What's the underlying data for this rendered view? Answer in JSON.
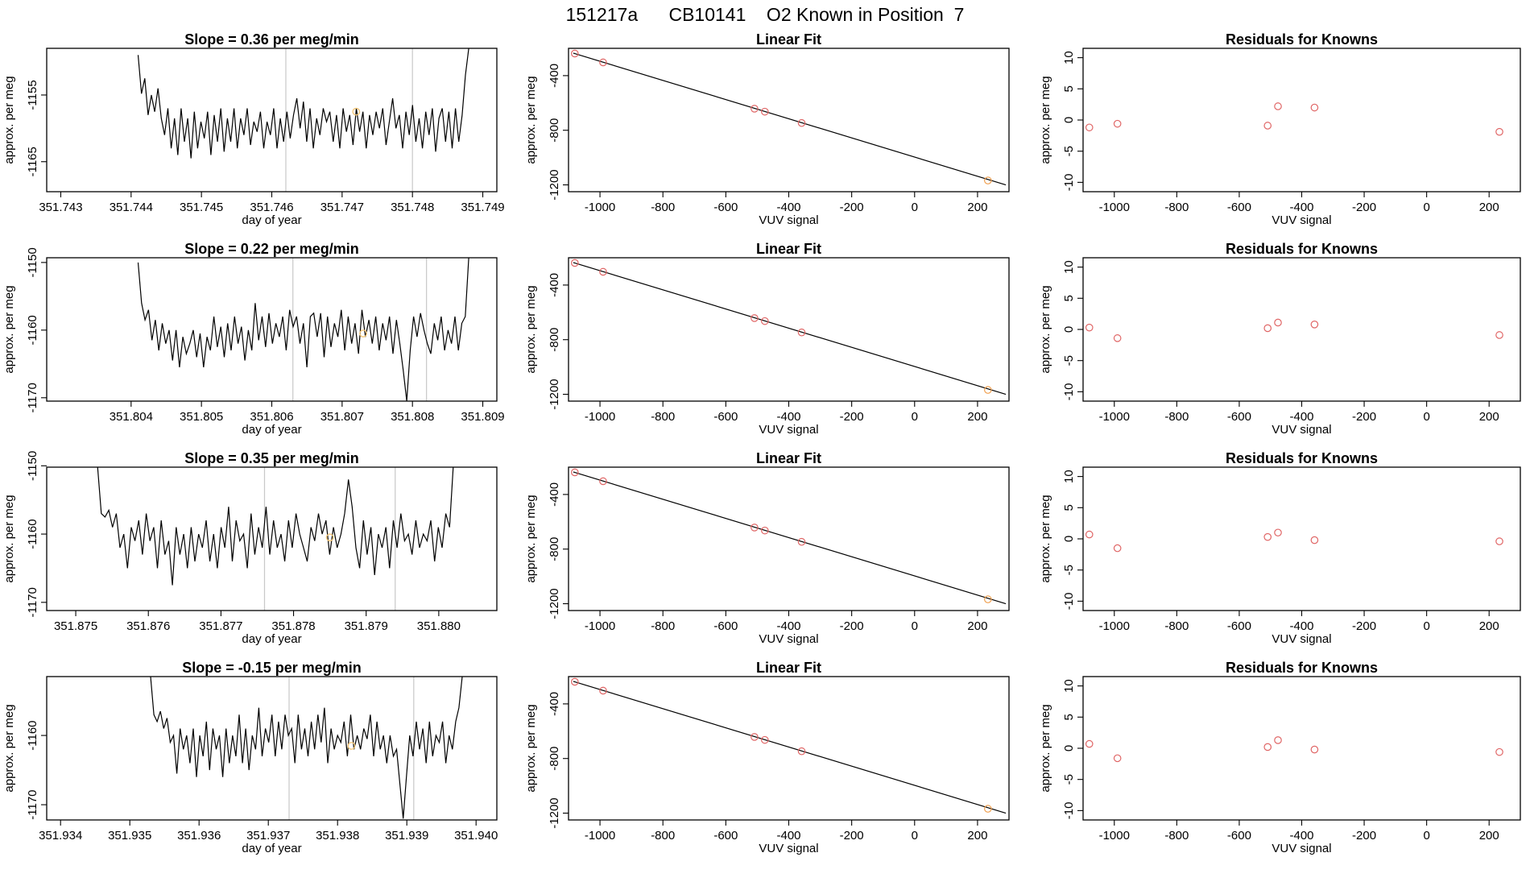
{
  "figure": {
    "title": "151217a      CB10141    O2 Known in Position  7"
  },
  "chart_data": [
    {
      "type": "line",
      "title": "Slope =  0.36  per meg/min",
      "xlabel": "day of year",
      "ylabel": "approx. per meg",
      "xlim": [
        351.7428,
        351.7492
      ],
      "ylim": [
        -1169.5,
        -1148
      ],
      "xticks": [
        "351.743",
        "351.744",
        "351.745",
        "351.746",
        "351.747",
        "351.748",
        "351.749"
      ],
      "yticks": [
        "-1155",
        "-1165"
      ],
      "vlines": [
        351.7462,
        351.748
      ],
      "highlight": {
        "x": 351.7472,
        "y": -1157.5,
        "color": "#f5c87a"
      },
      "line_color": "#000000",
      "x_start": 351.7441,
      "x_end": 351.7488,
      "values": [
        -1149,
        -1154.8,
        -1152.5,
        -1158,
        -1155,
        -1157.5,
        -1154,
        -1158.5,
        -1161,
        -1157,
        -1163,
        -1158.5,
        -1164,
        -1157,
        -1162,
        -1158.5,
        -1164.5,
        -1157.5,
        -1163,
        -1159,
        -1161.5,
        -1157.5,
        -1164,
        -1158,
        -1162,
        -1157,
        -1163.5,
        -1158.5,
        -1162,
        -1157,
        -1163,
        -1158.5,
        -1161,
        -1157,
        -1162.5,
        -1159,
        -1160.5,
        -1157.5,
        -1163,
        -1159,
        -1161,
        -1157,
        -1163,
        -1158.5,
        -1162,
        -1157.5,
        -1161.5,
        -1158,
        -1155.5,
        -1160,
        -1156,
        -1162,
        -1157,
        -1163,
        -1158.5,
        -1161,
        -1157,
        -1159,
        -1157.5,
        -1162,
        -1158,
        -1163,
        -1157,
        -1160.5,
        -1158,
        -1162.5,
        -1157,
        -1160.5,
        -1157.5,
        -1163,
        -1158,
        -1161,
        -1157.5,
        -1160,
        -1157,
        -1162.5,
        -1159,
        -1155.5,
        -1160,
        -1158,
        -1163,
        -1157.5,
        -1161,
        -1156.5,
        -1162,
        -1158.5,
        -1163,
        -1157.5,
        -1161,
        -1157,
        -1163.5,
        -1158.5,
        -1157,
        -1162,
        -1157.5,
        -1163,
        -1157,
        -1162,
        -1158,
        -1152,
        -1148
      ]
    },
    {
      "type": "scatter",
      "title": "Linear Fit",
      "xlabel": "VUV signal",
      "ylabel": "approx. per meg",
      "xlim": [
        -1100,
        300
      ],
      "ylim": [
        -1250,
        -200
      ],
      "xticks": [
        -1000,
        -800,
        -600,
        -400,
        -200,
        0,
        200
      ],
      "yticks": [
        -400,
        -800,
        -1200
      ],
      "fit_line": {
        "x1": -1085,
        "y1": -235,
        "x2": 290,
        "y2": -1200,
        "color": "#000000"
      },
      "points": [
        {
          "x": -1080,
          "y": -238,
          "color": "#e06666"
        },
        {
          "x": -990,
          "y": -303,
          "color": "#e06666"
        },
        {
          "x": -509,
          "y": -642,
          "color": "#e06666"
        },
        {
          "x": -476,
          "y": -664,
          "color": "#e06666"
        },
        {
          "x": -359,
          "y": -747,
          "color": "#e06666"
        },
        {
          "x": 233,
          "y": -1168,
          "color": "#f0a050"
        }
      ]
    },
    {
      "type": "scatter",
      "title": "Residuals for Knowns",
      "xlabel": "VUV signal",
      "ylabel": "approx. per meg",
      "xlim": [
        -1100,
        300
      ],
      "ylim": [
        -11.5,
        11.5
      ],
      "xticks": [
        -1000,
        -800,
        -600,
        -400,
        -200,
        0,
        200
      ],
      "yticks": [
        10,
        5,
        0,
        -5,
        -10
      ],
      "points": [
        {
          "x": -1080,
          "y": -1.2,
          "color": "#e06666"
        },
        {
          "x": -990,
          "y": -0.6,
          "color": "#e06666"
        },
        {
          "x": -509,
          "y": -0.9,
          "color": "#e06666"
        },
        {
          "x": -476,
          "y": 2.2,
          "color": "#e06666"
        },
        {
          "x": -359,
          "y": 2.0,
          "color": "#e06666"
        },
        {
          "x": 233,
          "y": -1.9,
          "color": "#e06666"
        }
      ]
    },
    {
      "type": "line",
      "title": "Slope =  0.22  per meg/min",
      "xlabel": "day of year",
      "ylabel": "approx. per meg",
      "xlim": [
        351.8028,
        351.8092
      ],
      "ylim": [
        -1170.5,
        -1149.3
      ],
      "xticks": [
        "351.804",
        "351.805",
        "351.806",
        "351.807",
        "351.808",
        "351.809"
      ],
      "yticks": [
        "-1150",
        "-1160",
        "-1170"
      ],
      "vlines": [
        351.8063,
        351.8082
      ],
      "highlight": {
        "x": 351.8073,
        "y": -1160.5,
        "color": "#f5c87a"
      },
      "line_color": "#000000",
      "x_start": 351.8041,
      "x_end": 351.8088,
      "values": [
        -1150,
        -1156,
        -1158.5,
        -1157,
        -1161.5,
        -1158.5,
        -1163,
        -1159,
        -1162,
        -1160,
        -1164.5,
        -1160,
        -1165.5,
        -1161,
        -1163.5,
        -1162,
        -1160,
        -1164,
        -1160.5,
        -1165.5,
        -1161,
        -1163,
        -1158,
        -1162.5,
        -1159.5,
        -1164,
        -1159,
        -1163,
        -1158,
        -1162,
        -1159.5,
        -1164.5,
        -1160,
        -1163,
        -1156,
        -1161.5,
        -1158,
        -1162.5,
        -1157.5,
        -1162,
        -1159,
        -1161,
        -1158,
        -1163,
        -1157,
        -1159.5,
        -1158,
        -1162,
        -1159,
        -1165.5,
        -1158,
        -1157.5,
        -1161,
        -1157.5,
        -1164,
        -1158,
        -1162.5,
        -1159,
        -1161,
        -1157,
        -1163,
        -1158,
        -1162,
        -1159,
        -1163.5,
        -1157,
        -1161,
        -1158.5,
        -1162,
        -1158,
        -1163,
        -1159,
        -1161.5,
        -1158,
        -1163.5,
        -1158.5,
        -1162,
        -1166,
        -1170.5,
        -1163,
        -1158,
        -1161,
        -1157.5,
        -1160,
        -1162,
        -1163.5,
        -1159,
        -1161.5,
        -1158,
        -1163,
        -1160,
        -1162,
        -1158,
        -1163,
        -1159,
        -1158,
        -1149.3
      ]
    },
    {
      "type": "scatter",
      "title": "Linear Fit",
      "xlabel": "VUV signal",
      "ylabel": "approx. per meg",
      "xlim": [
        -1100,
        300
      ],
      "ylim": [
        -1250,
        -200
      ],
      "xticks": [
        -1000,
        -800,
        -600,
        -400,
        -200,
        0,
        200
      ],
      "yticks": [
        -400,
        -800,
        -1200
      ],
      "fit_line": {
        "x1": -1085,
        "y1": -235,
        "x2": 290,
        "y2": -1200,
        "color": "#000000"
      },
      "points": [
        {
          "x": -1080,
          "y": -238,
          "color": "#e06666"
        },
        {
          "x": -990,
          "y": -303,
          "color": "#e06666"
        },
        {
          "x": -509,
          "y": -642,
          "color": "#e06666"
        },
        {
          "x": -476,
          "y": -664,
          "color": "#e06666"
        },
        {
          "x": -359,
          "y": -747,
          "color": "#e06666"
        },
        {
          "x": 233,
          "y": -1168,
          "color": "#f0a050"
        }
      ]
    },
    {
      "type": "scatter",
      "title": "Residuals for Knowns",
      "xlabel": "VUV signal",
      "ylabel": "approx. per meg",
      "xlim": [
        -1100,
        300
      ],
      "ylim": [
        -11.5,
        11.5
      ],
      "xticks": [
        -1000,
        -800,
        -600,
        -400,
        -200,
        0,
        200
      ],
      "yticks": [
        10,
        5,
        0,
        -5,
        -10
      ],
      "points": [
        {
          "x": -1080,
          "y": 0.3,
          "color": "#e06666"
        },
        {
          "x": -990,
          "y": -1.4,
          "color": "#e06666"
        },
        {
          "x": -509,
          "y": 0.2,
          "color": "#e06666"
        },
        {
          "x": -476,
          "y": 1.1,
          "color": "#e06666"
        },
        {
          "x": -359,
          "y": 0.8,
          "color": "#e06666"
        },
        {
          "x": 233,
          "y": -0.9,
          "color": "#e06666"
        }
      ]
    },
    {
      "type": "line",
      "title": "Slope =  0.35  per meg/min",
      "xlabel": "day of year",
      "ylabel": "approx. per meg",
      "xlim": [
        351.8746,
        351.8808
      ],
      "ylim": [
        -1171.2,
        -1150.2
      ],
      "xticks": [
        "351.875",
        "351.876",
        "351.877",
        "351.878",
        "351.879",
        "351.880"
      ],
      "yticks": [
        "-1150",
        "-1160",
        "-1170"
      ],
      "vlines": [
        351.8776,
        351.8794
      ],
      "highlight": {
        "x": 351.8785,
        "y": -1160.5,
        "color": "#f5c87a"
      },
      "line_color": "#000000",
      "x_start": 351.8753,
      "x_end": 351.8802,
      "values": [
        -1150,
        -1157,
        -1157.5,
        -1156.5,
        -1159,
        -1157,
        -1162,
        -1160,
        -1165,
        -1159,
        -1161,
        -1158,
        -1163,
        -1157,
        -1161,
        -1159,
        -1165,
        -1158,
        -1163,
        -1161,
        -1167.5,
        -1159,
        -1163,
        -1160,
        -1165,
        -1159,
        -1164,
        -1160,
        -1162,
        -1158,
        -1164,
        -1160,
        -1165,
        -1159,
        -1162,
        -1156,
        -1164,
        -1158,
        -1161,
        -1160,
        -1165,
        -1157,
        -1163,
        -1159,
        -1162,
        -1156,
        -1163,
        -1158,
        -1162,
        -1160,
        -1164,
        -1158,
        -1162,
        -1157,
        -1160,
        -1162,
        -1164,
        -1159,
        -1161,
        -1157,
        -1160,
        -1158,
        -1163,
        -1159,
        -1162,
        -1160,
        -1157,
        -1152,
        -1156,
        -1162,
        -1165,
        -1158,
        -1163,
        -1159,
        -1166,
        -1160,
        -1162,
        -1159,
        -1165,
        -1158,
        -1162,
        -1157,
        -1161,
        -1160,
        -1163,
        -1158,
        -1162,
        -1160,
        -1161,
        -1158,
        -1164,
        -1159,
        -1162,
        -1157,
        -1159,
        -1150
      ]
    },
    {
      "type": "scatter",
      "title": "Linear Fit",
      "xlabel": "VUV signal",
      "ylabel": "approx. per meg",
      "xlim": [
        -1100,
        300
      ],
      "ylim": [
        -1250,
        -200
      ],
      "xticks": [
        -1000,
        -800,
        -600,
        -400,
        -200,
        0,
        200
      ],
      "yticks": [
        -400,
        -800,
        -1200
      ],
      "fit_line": {
        "x1": -1085,
        "y1": -235,
        "x2": 290,
        "y2": -1200,
        "color": "#000000"
      },
      "points": [
        {
          "x": -1080,
          "y": -238,
          "color": "#e06666"
        },
        {
          "x": -990,
          "y": -303,
          "color": "#e06666"
        },
        {
          "x": -509,
          "y": -642,
          "color": "#e06666"
        },
        {
          "x": -476,
          "y": -664,
          "color": "#e06666"
        },
        {
          "x": -359,
          "y": -747,
          "color": "#e06666"
        },
        {
          "x": 233,
          "y": -1168,
          "color": "#f0a050"
        }
      ]
    },
    {
      "type": "scatter",
      "title": "Residuals for Knowns",
      "xlabel": "VUV signal",
      "ylabel": "approx. per meg",
      "xlim": [
        -1100,
        300
      ],
      "ylim": [
        -11.5,
        11.5
      ],
      "xticks": [
        -1000,
        -800,
        -600,
        -400,
        -200,
        0,
        200
      ],
      "yticks": [
        10,
        5,
        0,
        -5,
        -10
      ],
      "points": [
        {
          "x": -1080,
          "y": 0.7,
          "color": "#e06666"
        },
        {
          "x": -990,
          "y": -1.5,
          "color": "#e06666"
        },
        {
          "x": -509,
          "y": 0.3,
          "color": "#e06666"
        },
        {
          "x": -476,
          "y": 1.0,
          "color": "#e06666"
        },
        {
          "x": -359,
          "y": -0.2,
          "color": "#e06666"
        },
        {
          "x": 233,
          "y": -0.4,
          "color": "#e06666"
        }
      ]
    },
    {
      "type": "line",
      "title": "Slope =  -0.15  per meg/min",
      "xlabel": "day of year",
      "ylabel": "approx. per meg",
      "xlim": [
        351.9338,
        351.9403
      ],
      "ylim": [
        -1172.2,
        -1151.5
      ],
      "xticks": [
        "351.934",
        "351.935",
        "351.936",
        "351.937",
        "351.938",
        "351.939",
        "351.940"
      ],
      "yticks": [
        "-1160",
        "-1170"
      ],
      "vlines": [
        351.9373,
        351.9391
      ],
      "highlight": {
        "x": 351.9382,
        "y": -1161.5,
        "color": "#f5c87a"
      },
      "line_color": "#000000",
      "x_start": 351.9353,
      "x_end": 351.9398,
      "values": [
        -1151.5,
        -1157,
        -1158,
        -1156.5,
        -1159,
        -1157.5,
        -1161,
        -1160,
        -1165.5,
        -1159,
        -1162,
        -1160,
        -1164,
        -1159,
        -1166,
        -1160,
        -1163,
        -1158,
        -1165,
        -1159,
        -1162,
        -1160,
        -1166,
        -1159,
        -1164,
        -1160,
        -1163,
        -1157,
        -1164,
        -1159,
        -1165,
        -1160,
        -1162,
        -1156,
        -1163,
        -1159,
        -1161,
        -1157,
        -1163,
        -1158,
        -1162,
        -1157,
        -1160,
        -1159,
        -1164,
        -1157,
        -1162,
        -1159,
        -1163,
        -1158,
        -1162,
        -1157,
        -1161,
        -1156,
        -1164,
        -1159,
        -1162,
        -1160,
        -1161,
        -1158,
        -1163,
        -1157,
        -1162,
        -1160,
        -1162,
        -1159,
        -1160.5,
        -1157,
        -1163,
        -1158,
        -1162,
        -1160,
        -1164,
        -1160,
        -1163,
        -1162,
        -1167,
        -1172,
        -1166,
        -1160,
        -1163,
        -1158,
        -1162,
        -1159,
        -1164,
        -1158,
        -1163,
        -1160,
        -1161,
        -1158,
        -1164,
        -1160,
        -1162,
        -1158,
        -1156,
        -1151.5
      ]
    },
    {
      "type": "scatter",
      "title": "Linear Fit",
      "xlabel": "VUV signal",
      "ylabel": "approx. per meg",
      "xlim": [
        -1100,
        300
      ],
      "ylim": [
        -1250,
        -200
      ],
      "xticks": [
        -1000,
        -800,
        -600,
        -400,
        -200,
        0,
        200
      ],
      "yticks": [
        -400,
        -800,
        -1200
      ],
      "fit_line": {
        "x1": -1085,
        "y1": -235,
        "x2": 290,
        "y2": -1200,
        "color": "#000000"
      },
      "points": [
        {
          "x": -1080,
          "y": -238,
          "color": "#e06666"
        },
        {
          "x": -990,
          "y": -303,
          "color": "#e06666"
        },
        {
          "x": -509,
          "y": -642,
          "color": "#e06666"
        },
        {
          "x": -476,
          "y": -664,
          "color": "#e06666"
        },
        {
          "x": -359,
          "y": -747,
          "color": "#e06666"
        },
        {
          "x": 233,
          "y": -1168,
          "color": "#f0a050"
        }
      ]
    },
    {
      "type": "scatter",
      "title": "Residuals for Knowns",
      "xlabel": "VUV signal",
      "ylabel": "approx. per meg",
      "xlim": [
        -1100,
        300
      ],
      "ylim": [
        -11.5,
        11.5
      ],
      "xticks": [
        -1000,
        -800,
        -600,
        -400,
        -200,
        0,
        200
      ],
      "yticks": [
        10,
        5,
        0,
        -5,
        -10
      ],
      "points": [
        {
          "x": -1080,
          "y": 0.7,
          "color": "#e06666"
        },
        {
          "x": -990,
          "y": -1.6,
          "color": "#e06666"
        },
        {
          "x": -509,
          "y": 0.2,
          "color": "#e06666"
        },
        {
          "x": -476,
          "y": 1.3,
          "color": "#e06666"
        },
        {
          "x": -359,
          "y": -0.2,
          "color": "#e06666"
        },
        {
          "x": 233,
          "y": -0.6,
          "color": "#e06666"
        }
      ]
    }
  ]
}
